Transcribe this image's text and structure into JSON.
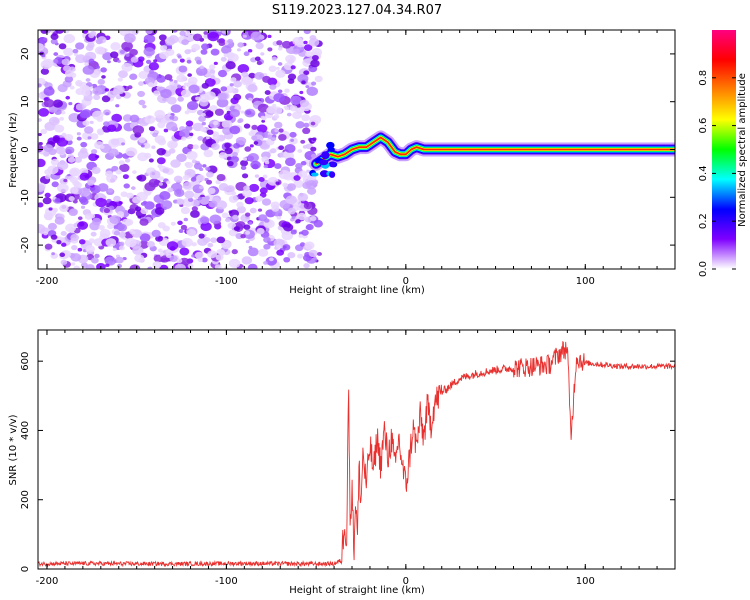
{
  "title": "S119.2023.127.04.34.R07",
  "chart_data": [
    {
      "type": "heatmap",
      "xlabel": "Height of straight line (km)",
      "ylabel": "Frequency (Hz)",
      "xlim": [
        -205,
        150
      ],
      "ylim": [
        -25,
        25
      ],
      "xticks": [
        -200,
        -100,
        0,
        100
      ],
      "xtick_labels": [
        "-200",
        "-100",
        "0",
        "100"
      ],
      "yticks": [
        20,
        10,
        0,
        -10,
        -20
      ],
      "ytick_labels": [
        "20",
        "10",
        "0",
        "-10",
        "-20"
      ],
      "noise_region_x": [
        -205,
        -48
      ],
      "signal_track": {
        "x": [
          -50,
          -46,
          -42,
          -38,
          -34,
          -30,
          -26,
          -22,
          -18,
          -14,
          -10,
          -6,
          -3,
          0,
          3,
          6,
          10,
          20,
          40,
          60,
          80,
          100,
          120,
          150
        ],
        "y": [
          -3,
          -2,
          -1,
          -1.5,
          -1,
          0,
          0.5,
          0.5,
          1.5,
          2.5,
          1.5,
          -0.5,
          -1,
          -1,
          0,
          0.5,
          0,
          0,
          0,
          0,
          0,
          0,
          0,
          0
        ]
      },
      "colorbar": {
        "label": "Normalized spectral amplitude",
        "range": [
          0,
          1
        ],
        "ticks": [
          0.0,
          0.2,
          0.4,
          0.6,
          0.8
        ],
        "tick_labels": [
          "0.0",
          "0.2",
          "0.4",
          "0.6",
          "0.8"
        ],
        "colors": [
          "#ffffff",
          "#7f00ff",
          "#0000ff",
          "#00ffff",
          "#00ff00",
          "#ffff00",
          "#ff8000",
          "#ff0000",
          "#ff0080"
        ]
      },
      "grid": false
    },
    {
      "type": "line",
      "xlabel": "Height of straight line (km)",
      "ylabel": "SNR (10 * v/v)",
      "xlim": [
        -205,
        150
      ],
      "ylim": [
        0,
        690
      ],
      "xticks": [
        -200,
        -100,
        0,
        100
      ],
      "xtick_labels": [
        "-200",
        "-100",
        "0",
        "100"
      ],
      "yticks": [
        0,
        200,
        400,
        600
      ],
      "ytick_labels": [
        "0",
        "200",
        "400",
        "600"
      ],
      "color": "#e8302e",
      "series": [
        {
          "x": [
            -205,
            -180,
            -150,
            -120,
            -90,
            -60,
            -40,
            -36,
            -34,
            -33,
            -32,
            -31,
            -30,
            -29,
            -28,
            -27,
            -26,
            -25,
            -24,
            -22,
            -20,
            -18,
            -16,
            -14,
            -12,
            -10,
            -8,
            -6,
            -4,
            -2,
            0,
            2,
            4,
            6,
            8,
            10,
            12,
            14,
            16,
            20,
            25,
            30,
            40,
            50,
            60,
            70,
            80,
            85,
            90,
            92,
            95,
            100,
            110,
            120,
            130,
            140,
            150
          ],
          "y": [
            15,
            16,
            15,
            15,
            16,
            15,
            15,
            25,
            150,
            60,
            545,
            120,
            260,
            40,
            210,
            90,
            300,
            180,
            340,
            240,
            360,
            280,
            380,
            300,
            400,
            320,
            380,
            290,
            380,
            300,
            240,
            320,
            410,
            350,
            440,
            380,
            470,
            420,
            480,
            510,
            530,
            550,
            565,
            575,
            580,
            585,
            590,
            620,
            640,
            380,
            610,
            595,
            590,
            585,
            585,
            585,
            585
          ]
        }
      ],
      "grid": false
    }
  ]
}
